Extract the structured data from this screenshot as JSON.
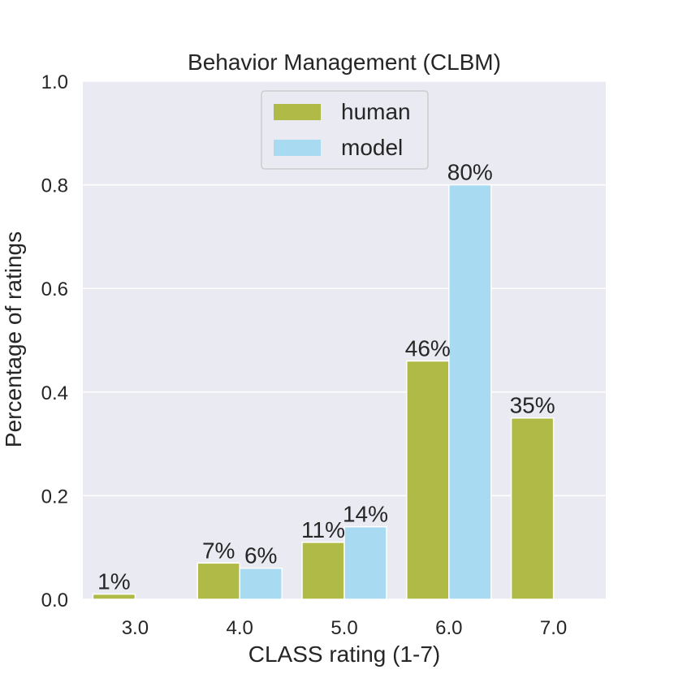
{
  "chart_data": {
    "type": "bar",
    "title": "Behavior Management (CLBM)",
    "xlabel": "CLASS rating (1-7)",
    "ylabel": "Percentage of ratings",
    "categories": [
      "3.0",
      "4.0",
      "5.0",
      "6.0",
      "7.0"
    ],
    "ylim": [
      0,
      1.0
    ],
    "yticks": [
      "0.0",
      "0.2",
      "0.4",
      "0.6",
      "0.8",
      "1.0"
    ],
    "ytick_values": [
      0,
      0.2,
      0.4,
      0.6,
      0.8,
      1.0
    ],
    "grid": true,
    "legend_position": "top-center",
    "series": [
      {
        "name": "human",
        "color": "#afba47",
        "values": [
          0.01,
          0.07,
          0.11,
          0.46,
          0.35
        ],
        "labels": [
          "1%",
          "7%",
          "11%",
          "46%",
          "35%"
        ]
      },
      {
        "name": "model",
        "color": "#a8daf2",
        "values": [
          0,
          0.06,
          0.14,
          0.8,
          0
        ],
        "labels": [
          "",
          "6%",
          "14%",
          "80%",
          ""
        ]
      }
    ],
    "colors": {
      "background": "#eaeaf2",
      "grid": "#ffffff",
      "text": "#262626"
    }
  }
}
